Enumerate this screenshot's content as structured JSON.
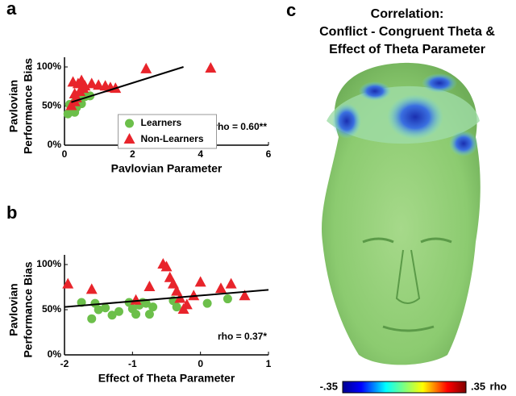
{
  "chart_data": [
    {
      "type": "scatter",
      "panel_label": "a",
      "ylabel": [
        "Pavlovian",
        "Performance Bias"
      ],
      "xlabel": "Pavlovian Parameter",
      "xlim": [
        0,
        6
      ],
      "xticks": [
        0,
        2,
        4,
        6
      ],
      "ylim": [
        0,
        100
      ],
      "yticks": [
        {
          "value": 0,
          "label": "0%"
        },
        {
          "value": 50,
          "label": "50%"
        },
        {
          "value": 100,
          "label": "100%"
        }
      ],
      "annotation": "rho = 0.60**",
      "legend": "lower center",
      "series": [
        {
          "name": "Learners",
          "color": "#6cbf4a",
          "marker": "circle",
          "x": [
            0.1,
            0.15,
            0.2,
            0.25,
            0.3,
            0.35,
            0.4,
            0.45,
            0.5,
            0.6,
            0.75,
            0.3
          ],
          "values": [
            40,
            52,
            50,
            45,
            55,
            48,
            60,
            57,
            53,
            62,
            63,
            42
          ]
        },
        {
          "name": "Non-Learners",
          "color": "#e8242b",
          "marker": "triangle",
          "x": [
            0.2,
            0.25,
            0.3,
            0.35,
            0.4,
            0.5,
            0.55,
            0.6,
            0.8,
            1.0,
            1.2,
            1.35,
            1.5,
            2.4,
            4.3,
            0.3,
            0.45
          ],
          "values": [
            50,
            80,
            65,
            60,
            78,
            82,
            72,
            75,
            78,
            76,
            75,
            73,
            72,
            97,
            98,
            55,
            68
          ]
        }
      ],
      "fit": {
        "x": [
          0.2,
          3.5
        ],
        "y": [
          55,
          100
        ]
      }
    },
    {
      "type": "scatter",
      "panel_label": "b",
      "ylabel": [
        "Pavlovian",
        "Performance Bias"
      ],
      "xlabel": "Effect of Theta Parameter",
      "xlim": [
        -2,
        1
      ],
      "xticks": [
        -2,
        -1,
        0,
        1
      ],
      "ylim": [
        0,
        100
      ],
      "yticks": [
        {
          "value": 0,
          "label": "0%"
        },
        {
          "value": 50,
          "label": "50%"
        },
        {
          "value": 100,
          "label": "100%"
        }
      ],
      "annotation": "rho = 0.37*",
      "series": [
        {
          "color": "#6cbf4a",
          "marker": "circle",
          "x": [
            -1.75,
            -1.6,
            -1.55,
            -1.5,
            -1.4,
            -1.3,
            -1.2,
            -1.05,
            -1.0,
            -0.95,
            -0.9,
            -0.8,
            -0.75,
            -0.7,
            -0.4,
            -0.35,
            0.1,
            0.4,
            -0.85
          ],
          "values": [
            58,
            40,
            57,
            50,
            52,
            44,
            48,
            58,
            51,
            45,
            55,
            57,
            45,
            53,
            60,
            53,
            57,
            62,
            58
          ]
        },
        {
          "color": "#e8242b",
          "marker": "triangle",
          "x": [
            -1.95,
            -1.6,
            -0.95,
            -0.75,
            -0.55,
            -0.5,
            -0.45,
            -0.4,
            -0.35,
            -0.3,
            -0.25,
            -0.2,
            -0.1,
            0,
            0.3,
            0.45,
            0.65
          ],
          "values": [
            78,
            72,
            60,
            75,
            100,
            97,
            85,
            78,
            70,
            62,
            50,
            55,
            65,
            80,
            73,
            78,
            65
          ]
        }
      ],
      "fit": {
        "x": [
          -2,
          1
        ],
        "y": [
          53,
          72
        ]
      }
    },
    {
      "type": "headmap",
      "panel_label": "c",
      "title": [
        "Correlation:",
        "Conflict - Congruent Theta &",
        "Effect of Theta Parameter"
      ],
      "clim": [
        -0.35,
        0.35
      ],
      "cticks": [
        {
          "value": -0.35,
          "label": "-.35"
        },
        {
          "value": 0.35,
          "label": ".35"
        }
      ],
      "clabel": "rho"
    }
  ]
}
